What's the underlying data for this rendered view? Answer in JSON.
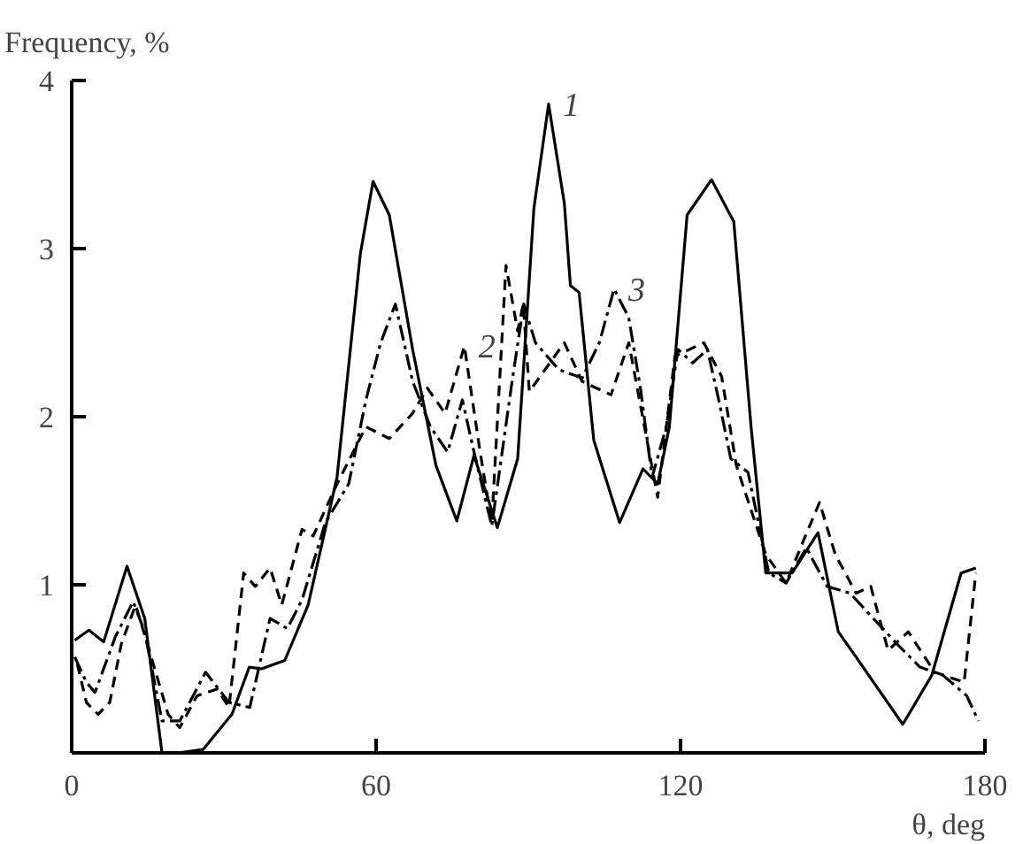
{
  "chart_data": {
    "type": "line",
    "xlabel": "θ, deg",
    "ylabel": "Frequency, %",
    "xlim": [
      0,
      180
    ],
    "ylim": [
      0,
      4
    ],
    "xticks": [
      0,
      60,
      120,
      180
    ],
    "yticks": [
      1,
      2,
      3,
      4
    ],
    "grid": false,
    "marker": "none",
    "series": [
      {
        "color": "#000000",
        "line_style": "solid",
        "x": [
          0.6,
          3.4,
          6.3,
          10.9,
          14.4,
          17.8,
          21,
          25.9,
          31.6,
          35,
          37.4,
          42,
          46.6,
          52.3,
          56.9,
          59.4,
          62.6,
          67.2,
          71.8,
          75.9,
          79.3,
          83.9,
          87.9,
          91.1,
          94.0,
          97.1,
          98.3,
          100,
          102.9,
          108.0,
          112.6,
          115.5,
          117.8,
          121.3,
          126.1,
          130.5,
          133.9,
          136.8,
          142,
          147.1,
          151.1,
          154.6,
          163.8,
          169.5,
          175.3,
          178.2
        ],
        "values": [
          0.67,
          0.73,
          0.66,
          1.11,
          0.8,
          0.0,
          0.0,
          0.02,
          0.23,
          0.51,
          0.5,
          0.55,
          0.88,
          1.64,
          2.97,
          3.4,
          3.2,
          2.4,
          1.71,
          1.38,
          1.77,
          1.34,
          1.75,
          3.24,
          3.86,
          3.27,
          2.78,
          2.74,
          1.86,
          1.37,
          1.69,
          1.6,
          1.94,
          3.2,
          3.41,
          3.16,
          1.94,
          1.07,
          1.07,
          1.31,
          0.72,
          0.57,
          0.17,
          0.46,
          1.07,
          1.1
        ]
      },
      {
        "color": "#000000",
        "line_style": "dashed",
        "x": [
          1.1,
          2.9,
          5.2,
          7.5,
          9.8,
          12.6,
          14.9,
          19,
          21.3,
          24.7,
          28.7,
          31,
          33.9,
          36.2,
          39.1,
          41.4,
          45.4,
          47.6,
          52.3,
          58,
          62.6,
          67.2,
          70.1,
          73.6,
          77.4,
          80.5,
          82.8,
          85.6,
          87.9,
          89,
          90.2,
          97.1,
          100.6,
          106.3,
          109.8,
          115.5,
          118.9,
          124.6,
          128.1,
          131,
          136.8,
          140.8,
          144.2,
          147.4,
          150.5,
          154.6,
          157.5,
          160.9,
          164.9,
          170.1,
          175.9,
          178.2
        ],
        "values": [
          0.53,
          0.3,
          0.23,
          0.3,
          0.65,
          0.88,
          0.65,
          0.23,
          0.15,
          0.34,
          0.38,
          0.27,
          1.07,
          0.99,
          1.1,
          0.88,
          1.33,
          1.29,
          1.6,
          1.94,
          1.87,
          2.02,
          2.17,
          2.02,
          2.42,
          1.79,
          1.37,
          2.9,
          2.51,
          2.67,
          2.15,
          2.44,
          2.21,
          2.13,
          2.44,
          1.52,
          2.36,
          2.44,
          2.24,
          1.71,
          1.18,
          1.01,
          1.26,
          1.49,
          1.18,
          0.95,
          0.99,
          0.61,
          0.72,
          0.48,
          0.42,
          1.07
        ]
      },
      {
        "color": "#000000",
        "line_style": "dashdot",
        "x": [
          0.6,
          2.9,
          4.6,
          8.6,
          12.1,
          14.4,
          17.8,
          21.3,
          26.4,
          31,
          35.1,
          39.1,
          42.5,
          45.4,
          50,
          54.6,
          58,
          60.9,
          63.8,
          67.2,
          70.7,
          74.1,
          77,
          79.3,
          82.8,
          86.8,
          89.1,
          91.4,
          96,
          100.6,
          104,
          106.9,
          109.8,
          112.1,
          114.4,
          117.2,
          119.5,
          122.4,
          125.3,
          127.6,
          129.9,
          133.3,
          137.4,
          140.8,
          144.8,
          148.9,
          153.4,
          158,
          162.6,
          167.2,
          171.8,
          176.4,
          178.7
        ],
        "values": [
          0.57,
          0.42,
          0.36,
          0.69,
          0.9,
          0.72,
          0.19,
          0.19,
          0.48,
          0.3,
          0.27,
          0.8,
          0.74,
          0.91,
          1.37,
          1.6,
          2.1,
          2.44,
          2.67,
          2.21,
          1.94,
          1.79,
          2.1,
          1.79,
          1.35,
          2.21,
          2.67,
          2.44,
          2.28,
          2.23,
          2.44,
          2.76,
          2.59,
          2.17,
          1.64,
          1.94,
          2.4,
          2.32,
          2.4,
          2.09,
          1.75,
          1.67,
          1.07,
          1.01,
          1.22,
          0.99,
          0.95,
          0.8,
          0.65,
          0.51,
          0.46,
          0.34,
          0.19
        ]
      }
    ],
    "annotations": [
      {
        "text": "1",
        "x": 94.0,
        "y": 3.86
      },
      {
        "text": "2",
        "x": 77.4,
        "y": 2.42
      },
      {
        "text": "3",
        "x": 106.9,
        "y": 2.76
      }
    ]
  }
}
